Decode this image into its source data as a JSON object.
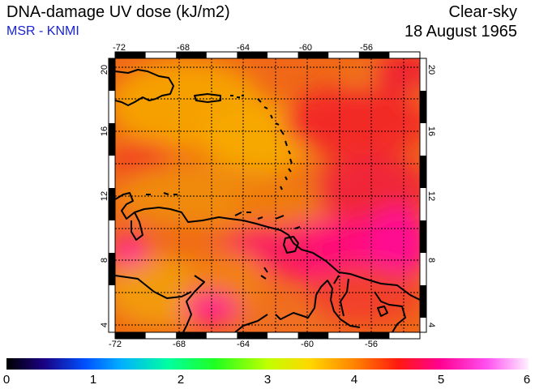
{
  "header": {
    "title": "DNA-damage UV dose (kJ/m2)",
    "subtitle": "MSR - KNMI",
    "sky": "Clear-sky",
    "date": "18 August 1965"
  },
  "map": {
    "lon_range": [
      -72,
      -53
    ],
    "lat_range": [
      3.5,
      20.5
    ],
    "lon_ticks": [
      "-72",
      "-68",
      "-64",
      "-60",
      "-56"
    ],
    "lat_ticks": [
      "4",
      "8",
      "12",
      "16",
      "20"
    ],
    "grid_style": "dotted",
    "colors": {
      "orange": "#f6a000",
      "dark_orange": "#f07010",
      "red": "#f02020",
      "pink": "#ff1090",
      "coast": "#000000"
    }
  },
  "colorbar": {
    "ticks": [
      "0",
      "1",
      "2",
      "3",
      "4",
      "5",
      "6"
    ],
    "colors": [
      "#000000",
      "#1a0080",
      "#0040ff",
      "#00c0ff",
      "#00ff80",
      "#40ff00",
      "#ffff00",
      "#ffa000",
      "#ff2000",
      "#ff0090",
      "#ff80ff",
      "#ffffff"
    ]
  }
}
